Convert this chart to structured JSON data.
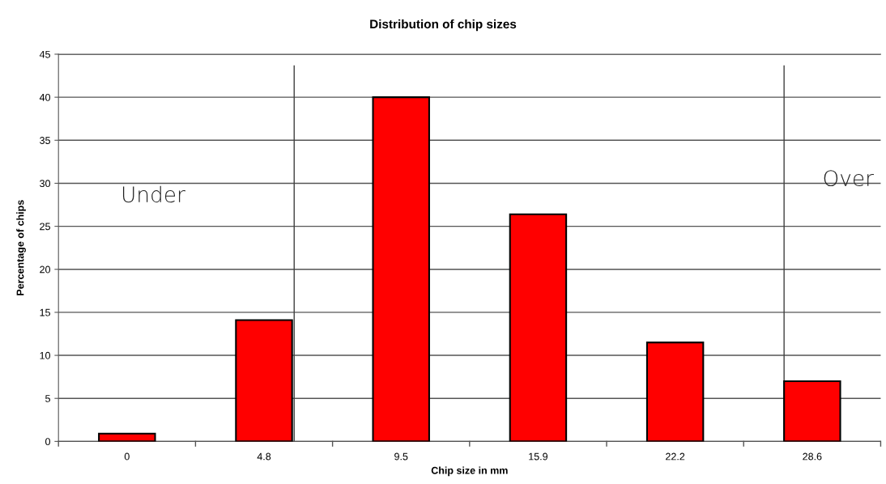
{
  "chart_data": {
    "type": "bar",
    "title": "Distribution of chip sizes",
    "xlabel": "Chip size in mm",
    "ylabel": "Percentage of chips",
    "categories": [
      "0",
      "4.8",
      "9.5",
      "15.9",
      "22.2",
      "28.6"
    ],
    "values": [
      0.9,
      14.1,
      40,
      26.4,
      11.5,
      7.0
    ],
    "color": "#ff0000",
    "ylim": [
      0,
      45
    ],
    "yticks": [
      0,
      5,
      10,
      15,
      20,
      25,
      30,
      35,
      40,
      45
    ],
    "grid": "y",
    "annotations": [
      "Under",
      "Over"
    ],
    "ref_lines": [
      {
        "axis": "x",
        "value": "4.8",
        "color": "#404040"
      },
      {
        "axis": "x",
        "value": "28.6",
        "color": "#404040"
      }
    ]
  }
}
